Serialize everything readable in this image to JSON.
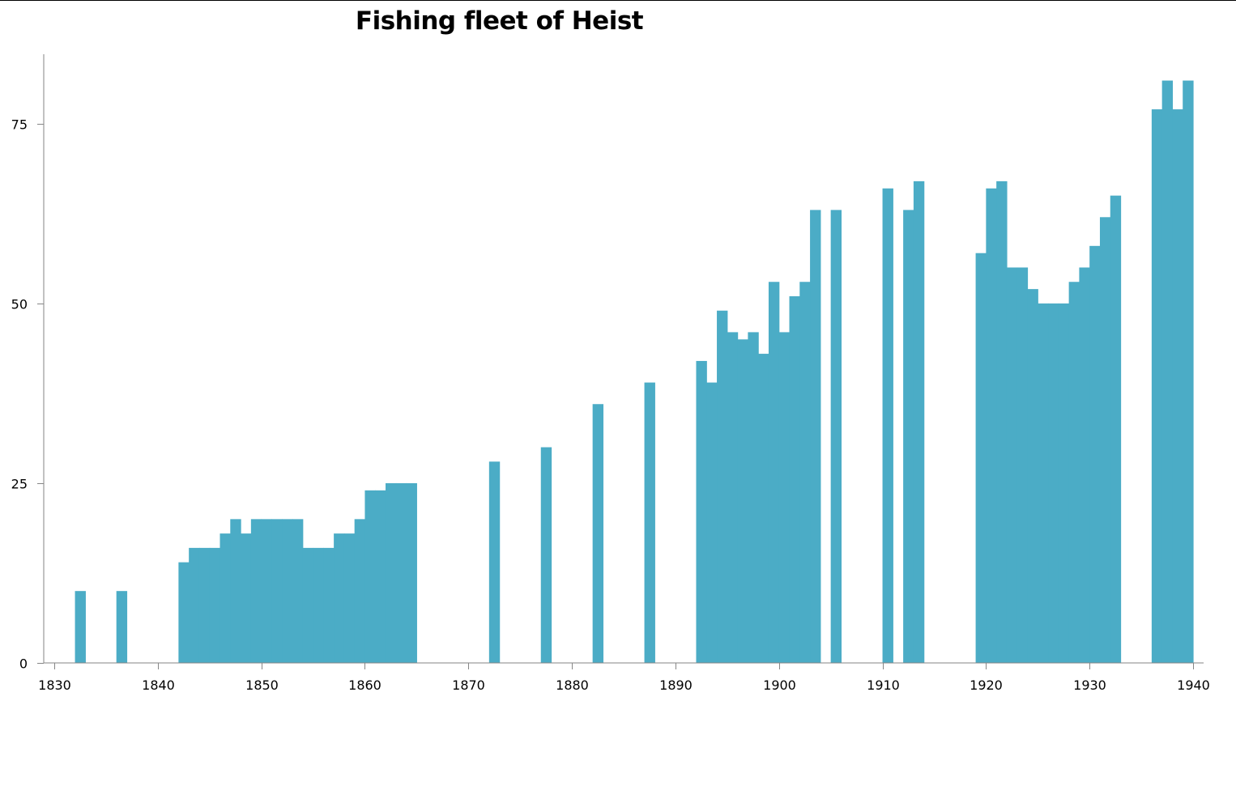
{
  "chart_data": {
    "type": "bar",
    "title": "Fishing fleet of Heist",
    "xlabel": "",
    "ylabel": "",
    "xlim": [
      1830,
      1940
    ],
    "ylim": [
      0,
      85
    ],
    "x_ticks": [
      1830,
      1840,
      1850,
      1860,
      1870,
      1880,
      1890,
      1900,
      1910,
      1920,
      1930,
      1940
    ],
    "y_ticks": [
      0,
      25,
      50,
      75
    ],
    "grid": false,
    "legend": "none",
    "bar_color": "#4BACC6",
    "series": [
      {
        "x": [
          1832,
          1836,
          1842,
          1843,
          1844,
          1845,
          1846,
          1847,
          1848,
          1849,
          1850,
          1851,
          1852,
          1853,
          1854,
          1855,
          1856,
          1857,
          1858,
          1859,
          1860,
          1861,
          1862,
          1863,
          1864,
          1872,
          1877,
          1882,
          1887,
          1892,
          1893,
          1894,
          1895,
          1896,
          1897,
          1898,
          1899,
          1900,
          1901,
          1902,
          1903,
          1905,
          1910,
          1912,
          1913,
          1919,
          1920,
          1921,
          1922,
          1923,
          1924,
          1925,
          1926,
          1927,
          1928,
          1929,
          1930,
          1931,
          1932,
          1936,
          1937,
          1938,
          1939
        ],
        "values": [
          10,
          10,
          14,
          16,
          16,
          16,
          18,
          20,
          18,
          20,
          20,
          20,
          20,
          20,
          16,
          16,
          16,
          18,
          18,
          20,
          24,
          24,
          25,
          25,
          25,
          28,
          30,
          36,
          39,
          42,
          39,
          49,
          46,
          45,
          46,
          43,
          53,
          46,
          51,
          53,
          63,
          63,
          66,
          63,
          67,
          57,
          66,
          67,
          55,
          55,
          52,
          50,
          50,
          50,
          53,
          55,
          58,
          62,
          65,
          77,
          81,
          77,
          81
        ]
      }
    ]
  }
}
